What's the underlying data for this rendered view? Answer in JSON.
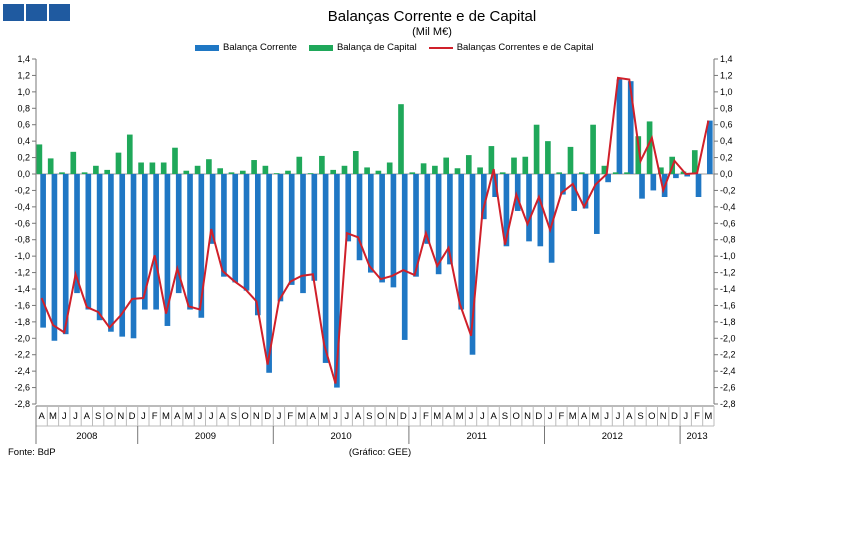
{
  "header": {
    "title": "Balanças Corrente e de Capital",
    "subtitle": "(Mil M€)"
  },
  "footer": {
    "source": "Fonte: BdP",
    "credit": "(Gráfico: GEE)"
  },
  "colors": {
    "current": "#1f77c4",
    "capital": "#1fa85a",
    "combined": "#d0202a"
  },
  "chart_data": {
    "type": "bar",
    "title": "Balanças Corrente e de Capital",
    "subtitle": "(Mil M€)",
    "ylim": [
      -2.8,
      1.4
    ],
    "yticks": [
      "1,4",
      "1,2",
      "1,0",
      "0,8",
      "0,6",
      "0,4",
      "0,2",
      "0,0",
      "-0,2",
      "-0,4",
      "-0,6",
      "-0,8",
      "-1,0",
      "-1,2",
      "-1,4",
      "-1,6",
      "-1,8",
      "-2,0",
      "-2,2",
      "-2,4",
      "-2,6",
      "-2,8"
    ],
    "categories": [
      "A",
      "M",
      "J",
      "J",
      "A",
      "S",
      "O",
      "N",
      "D",
      "J",
      "F",
      "M",
      "A",
      "M",
      "J",
      "J",
      "A",
      "S",
      "O",
      "N",
      "D",
      "J",
      "F",
      "M",
      "A",
      "M",
      "J",
      "J",
      "A",
      "S",
      "O",
      "N",
      "D",
      "J",
      "F",
      "M",
      "A",
      "M",
      "J",
      "J",
      "A",
      "S",
      "O",
      "N",
      "D",
      "J",
      "F",
      "M",
      "A",
      "M",
      "J",
      "J",
      "A",
      "S",
      "O",
      "N",
      "D",
      "J",
      "F",
      "M"
    ],
    "years": [
      {
        "label": "2008",
        "count": 9
      },
      {
        "label": "2009",
        "count": 12
      },
      {
        "label": "2010",
        "count": 12
      },
      {
        "label": "2011",
        "count": 12
      },
      {
        "label": "2012",
        "count": 12
      },
      {
        "label": "2013",
        "count": 3
      }
    ],
    "legend": [
      "Balança Corrente",
      "Balança de Capital",
      "Balanças Correntes e de Capital"
    ],
    "series": [
      {
        "name": "Balança Corrente",
        "type": "bar",
        "values": [
          -1.87,
          -2.03,
          -1.95,
          -1.45,
          -1.65,
          -1.78,
          -1.92,
          -1.98,
          -2.0,
          -1.65,
          -1.65,
          -1.85,
          -1.45,
          -1.65,
          -1.75,
          -0.85,
          -1.25,
          -1.32,
          -1.42,
          -1.72,
          -2.42,
          -1.55,
          -1.35,
          -1.45,
          -1.3,
          -2.3,
          -2.6,
          -0.82,
          -1.05,
          -1.2,
          -1.32,
          -1.38,
          -2.02,
          -1.25,
          -0.85,
          -1.22,
          -1.1,
          -1.65,
          -2.2,
          -0.55,
          -0.28,
          -0.88,
          -0.45,
          -0.82,
          -0.88,
          -1.08,
          -0.25,
          -0.45,
          -0.42,
          -0.73,
          -0.1,
          1.15,
          1.13,
          -0.3,
          -0.2,
          -0.28,
          -0.05,
          -0.03,
          -0.28,
          0.65
        ]
      },
      {
        "name": "Balança de Capital",
        "type": "bar",
        "values": [
          0.36,
          0.19,
          0.02,
          0.27,
          0.02,
          0.1,
          0.05,
          0.26,
          0.48,
          0.14,
          0.14,
          0.14,
          0.32,
          0.04,
          0.1,
          0.18,
          0.07,
          0.02,
          0.04,
          0.17,
          0.1,
          0.01,
          0.04,
          0.21,
          0.01,
          0.22,
          0.05,
          0.1,
          0.28,
          0.08,
          0.04,
          0.14,
          0.85,
          0.02,
          0.13,
          0.1,
          0.2,
          0.07,
          0.23,
          0.08,
          0.34,
          0.02,
          0.2,
          0.21,
          0.6,
          0.4,
          0.02,
          0.33,
          0.02,
          0.6,
          0.1,
          0.02,
          0.02,
          0.46,
          0.64,
          0.08,
          0.21,
          0.03,
          0.29,
          0.0
        ]
      },
      {
        "name": "Balanças Correntes e de Capital",
        "type": "line",
        "values": [
          -1.51,
          -1.84,
          -1.93,
          -1.22,
          -1.62,
          -1.68,
          -1.87,
          -1.72,
          -1.52,
          -1.51,
          -0.99,
          -1.7,
          -1.15,
          -1.61,
          -1.65,
          -0.67,
          -1.18,
          -1.3,
          -1.4,
          -1.55,
          -2.32,
          -1.54,
          -1.31,
          -1.24,
          -1.22,
          -2.08,
          -2.55,
          -0.72,
          -0.77,
          -1.12,
          -1.28,
          -1.24,
          -1.17,
          -1.23,
          -0.72,
          -1.12,
          -0.9,
          -1.58,
          -1.97,
          -0.47,
          0.06,
          -0.86,
          -0.25,
          -0.61,
          -0.28,
          -0.68,
          -0.23,
          -0.12,
          -0.4,
          -0.13,
          0.0,
          1.17,
          1.15,
          0.16,
          0.44,
          -0.2,
          0.16,
          0.0,
          0.01,
          0.65
        ]
      }
    ]
  }
}
